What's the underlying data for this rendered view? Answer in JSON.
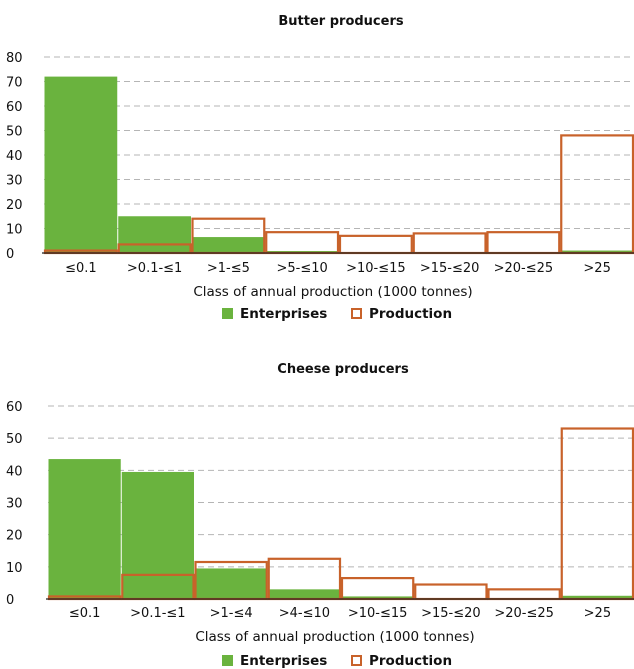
{
  "chart_data": [
    {
      "type": "bar",
      "title": "Butter producers",
      "categories": [
        "≤0.1",
        ">0.1-≤1",
        ">1-≤5",
        ">5-≤10",
        ">10-≤15",
        ">15-≤20",
        ">20-≤25",
        ">25"
      ],
      "series": [
        {
          "name": "Enterprises",
          "style": "filled",
          "color": "#6ab33e",
          "values": [
            72,
            15,
            6.5,
            0.8,
            0,
            0,
            0,
            1
          ]
        },
        {
          "name": "Production",
          "style": "outline",
          "color": "#c8622a",
          "values": [
            1,
            3.5,
            14,
            8.5,
            7,
            8,
            8.5,
            48
          ]
        }
      ],
      "xlabel": "Class of annual production (1000 tonnes)",
      "ylabel": "",
      "ylim": [
        0,
        80
      ],
      "yticks": [
        0,
        10,
        20,
        30,
        40,
        50,
        60,
        70,
        80
      ],
      "grid": true,
      "legend": "bottom"
    },
    {
      "type": "bar",
      "title": "Cheese producers",
      "categories": [
        "≤0.1",
        ">0.1-≤1",
        ">1-≤4",
        ">4-≤10",
        ">10-≤15",
        ">15-≤20",
        ">20-≤25",
        ">25"
      ],
      "series": [
        {
          "name": "Enterprises",
          "style": "filled",
          "color": "#6ab33e",
          "values": [
            43.5,
            39.5,
            9.5,
            3,
            0.8,
            0.3,
            0.3,
            1
          ]
        },
        {
          "name": "Production",
          "style": "outline",
          "color": "#c8622a",
          "values": [
            0.8,
            7.5,
            11.5,
            12.5,
            6.5,
            4.5,
            3,
            53
          ]
        }
      ],
      "xlabel": "Class of annual production (1000 tonnes)",
      "ylabel": "",
      "ylim": [
        0,
        60
      ],
      "yticks": [
        0,
        10,
        20,
        30,
        40,
        50,
        60
      ],
      "grid": true,
      "legend": "bottom"
    }
  ]
}
